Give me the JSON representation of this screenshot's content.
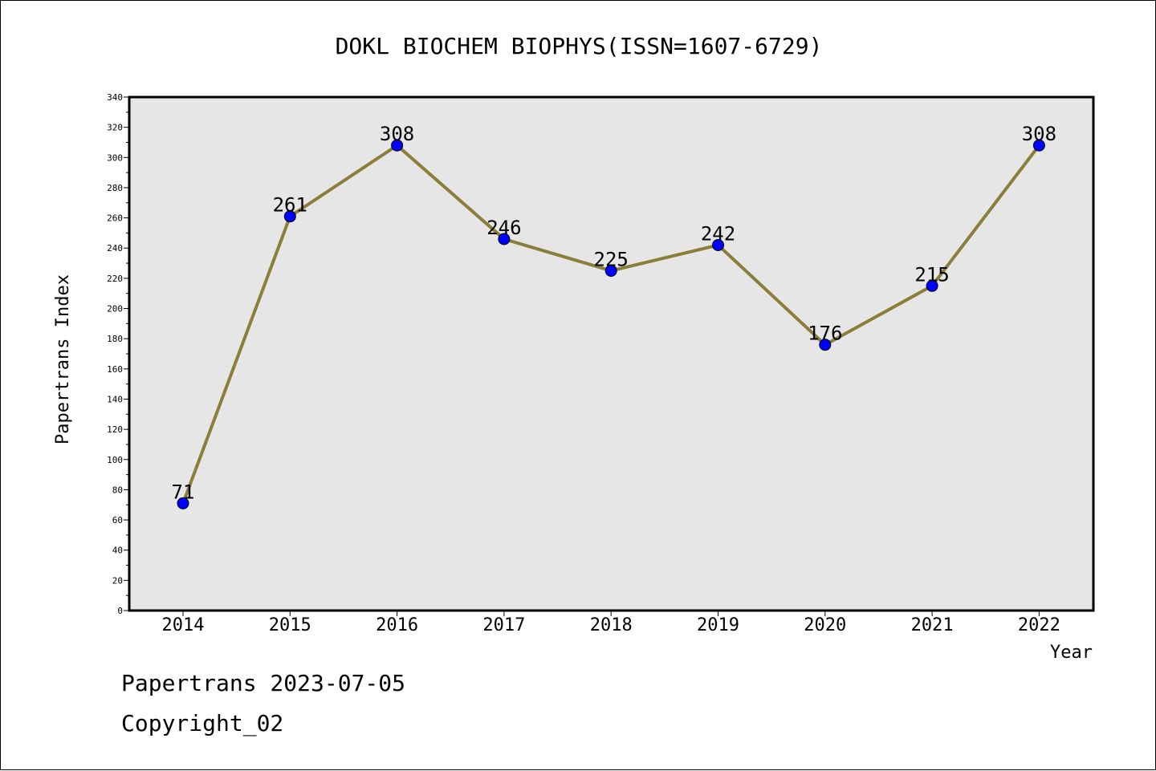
{
  "footer": {
    "line1": "Papertrans 2023-07-05",
    "line2": "Copyright_02"
  },
  "chart_data": {
    "type": "line",
    "title": "DOKL BIOCHEM BIOPHYS(ISSN=1607-6729)",
    "xlabel": "Year",
    "ylabel": "Papertrans Index",
    "categories": [
      "2014",
      "2015",
      "2016",
      "2017",
      "2018",
      "2019",
      "2020",
      "2021",
      "2022"
    ],
    "series": [
      {
        "values": [
          71,
          261,
          308,
          246,
          225,
          242,
          176,
          215,
          308
        ]
      }
    ],
    "ylim": [
      0,
      340
    ],
    "yticks": [
      0,
      20,
      40,
      60,
      80,
      100,
      120,
      140,
      160,
      180,
      200,
      220,
      240,
      260,
      280,
      300,
      320,
      340
    ],
    "grid": false,
    "colors": {
      "plot_background": "#e6e6e6",
      "line": "#8b7d3a",
      "marker": "#0000ff"
    }
  }
}
